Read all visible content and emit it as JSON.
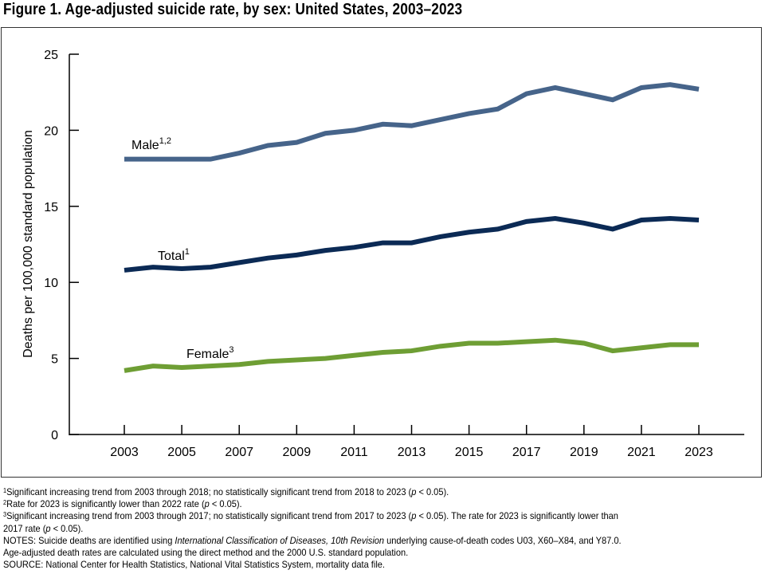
{
  "title": "Figure 1. Age-adjusted suicide rate, by sex: United States, 2003–2023",
  "chart_data": {
    "type": "line",
    "title": "Figure 1. Age-adjusted suicide rate, by sex: United States, 2003–2023",
    "xlabel": "",
    "ylabel": "Deaths per 100,000 standard population",
    "ylim": [
      0,
      25
    ],
    "yticks": [
      "0",
      "5",
      "10",
      "15",
      "20",
      "25"
    ],
    "xticks": [
      "2003",
      "2005",
      "2007",
      "2009",
      "2011",
      "2013",
      "2015",
      "2017",
      "2019",
      "2021",
      "2023"
    ],
    "x": [
      2003,
      2004,
      2005,
      2006,
      2007,
      2008,
      2009,
      2010,
      2011,
      2012,
      2013,
      2014,
      2015,
      2016,
      2017,
      2018,
      2019,
      2020,
      2021,
      2022,
      2023
    ],
    "grid": false,
    "series": [
      {
        "name": "Male",
        "label_sup": "1,2",
        "color": "#46648a",
        "values": [
          18.1,
          18.1,
          18.1,
          18.1,
          18.5,
          19.0,
          19.2,
          19.8,
          20.0,
          20.4,
          20.3,
          20.7,
          21.1,
          21.4,
          22.4,
          22.8,
          22.4,
          22.0,
          22.8,
          23.0,
          22.7
        ]
      },
      {
        "name": "Total",
        "label_sup": "1",
        "color": "#0b2a55",
        "values": [
          10.8,
          11.0,
          10.9,
          11.0,
          11.3,
          11.6,
          11.8,
          12.1,
          12.3,
          12.6,
          12.6,
          13.0,
          13.3,
          13.5,
          14.0,
          14.2,
          13.9,
          13.5,
          14.1,
          14.2,
          14.1
        ]
      },
      {
        "name": "Female",
        "label_sup": "3",
        "color": "#6e9e34",
        "values": [
          4.2,
          4.5,
          4.4,
          4.5,
          4.6,
          4.8,
          4.9,
          5.0,
          5.2,
          5.4,
          5.5,
          5.8,
          6.0,
          6.0,
          6.1,
          6.2,
          6.0,
          5.5,
          5.7,
          5.9,
          5.9
        ]
      }
    ]
  },
  "footnotes": [
    {
      "sup": "1",
      "text": "Significant increasing trend from 2003 through 2018; no statistically significant trend from 2018 to 2023 (",
      "p": "p",
      "tail": " < 0.05)."
    },
    {
      "sup": "2",
      "text": "Rate for 2023 is significantly lower than 2022 rate (",
      "p": "p",
      "tail": " < 0.05)."
    },
    {
      "sup": "3",
      "text": "Significant increasing trend from 2003 through 2017; no statistically significant trend from 2017 to 2023 (",
      "p": "p",
      "tail": " < 0.05). The rate for 2023 is significantly lower than"
    },
    {
      "sup": "",
      "text": "2017 rate (",
      "p": "p",
      "tail": " < 0.05)."
    }
  ],
  "notes": {
    "line1_pre": "NOTES: Suicide deaths are identified using ",
    "line1_italic": "International Classification of Diseases, 10th Revision",
    "line1_post": " underlying cause-of-death codes U03, X60–X84, and Y87.0.",
    "line2": "Age-adjusted death rates are calculated using the direct method and the 2000 U.S. standard population.",
    "source": "SOURCE: National Center for Health Statistics, National Vital Statistics System, mortality data file."
  }
}
